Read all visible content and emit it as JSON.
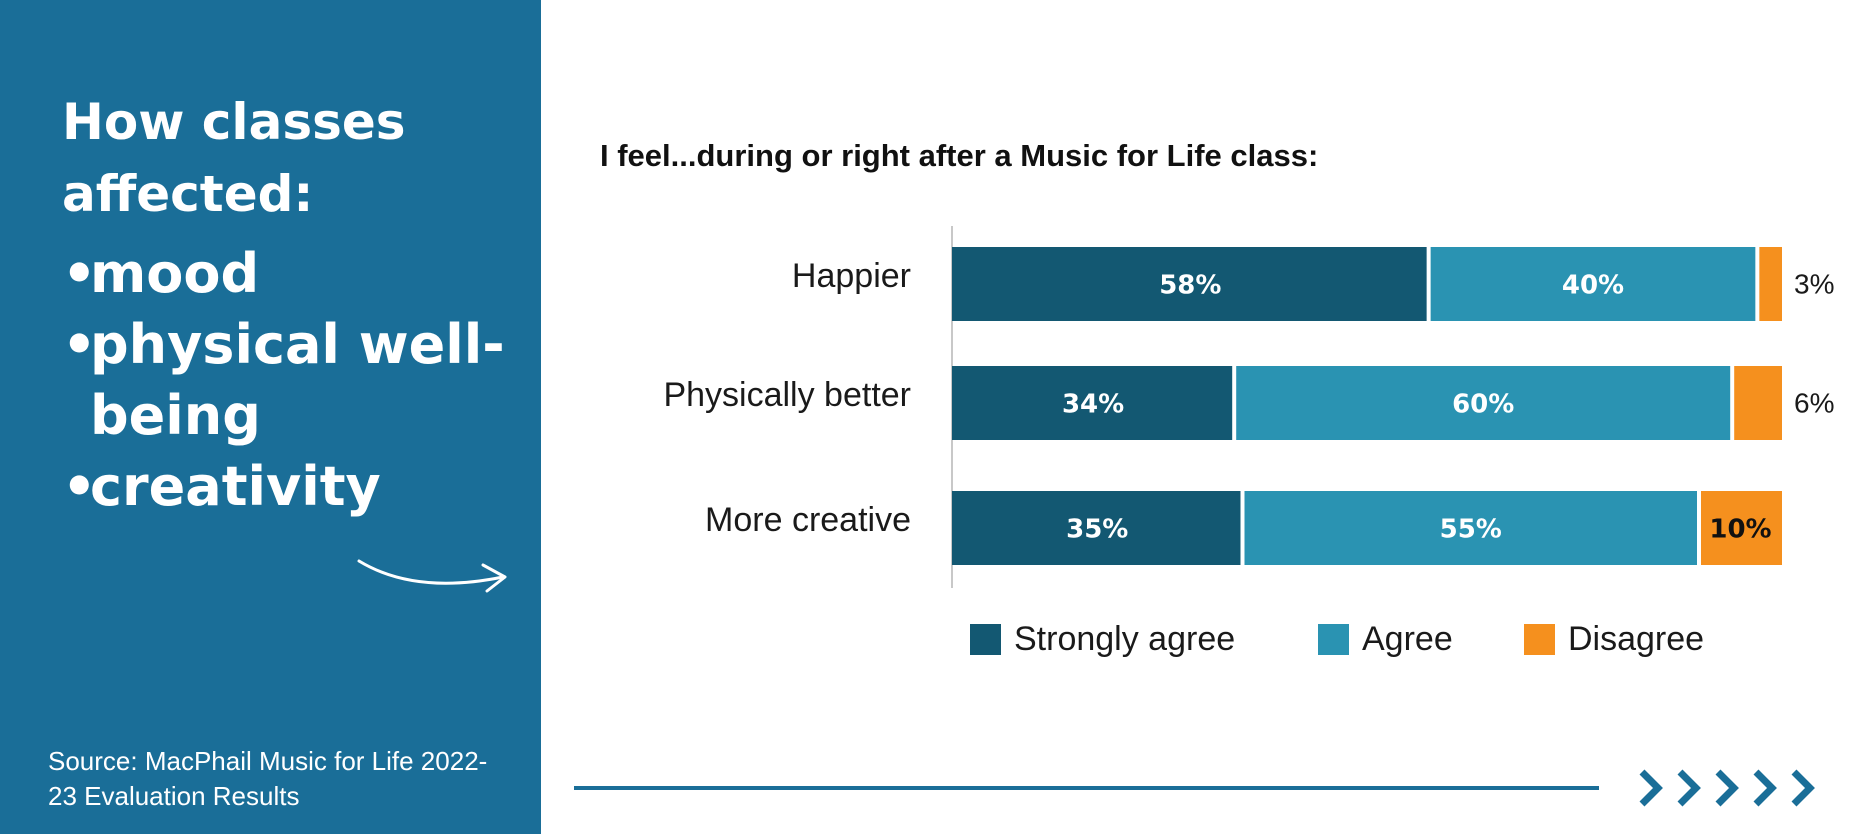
{
  "left_panel": {
    "heading": "How classes affected:",
    "bullets": [
      "mood",
      "physical well-being",
      "creativity"
    ],
    "source": "Source: MacPhail Music for Life 2022-23 Evaluation Results"
  },
  "colors": {
    "panel": "#1a6e98",
    "strongly_agree": "#135872",
    "agree": "#2a93b2",
    "disagree": "#f5901e"
  },
  "chart_data": {
    "type": "bar",
    "orientation": "horizontal",
    "stacked": true,
    "title": "I feel...during or right after a Music for Life class:",
    "categories": [
      "Happier",
      "Physically better",
      "More creative"
    ],
    "series": [
      {
        "name": "Strongly agree",
        "values": [
          58,
          34,
          35
        ],
        "labels": [
          "58%",
          "34%",
          "35%"
        ]
      },
      {
        "name": "Agree",
        "values": [
          40,
          60,
          55
        ],
        "labels": [
          "40%",
          "60%",
          "55%"
        ]
      },
      {
        "name": "Disagree",
        "values": [
          3,
          6,
          10
        ],
        "labels": [
          "3%",
          "6%",
          "10%"
        ]
      }
    ],
    "legend": "bottom",
    "grid": false
  }
}
